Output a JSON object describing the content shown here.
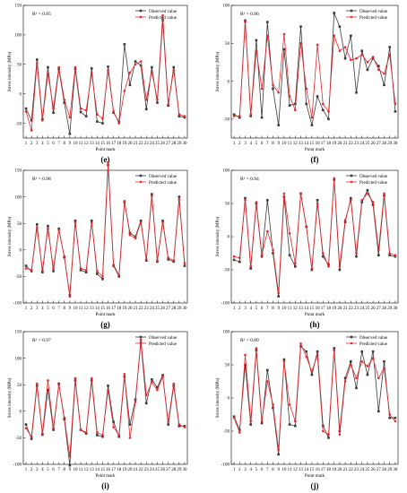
{
  "figure": {
    "colors": {
      "observed": "#3a3a3a",
      "predicted": "#e8262b",
      "axis": "#000000"
    }
  },
  "chart_data": [
    {
      "type": "line",
      "panel": "(e)",
      "r2": "R² = 0.85",
      "xlabel": "Point mark",
      "ylabel": "Stress intensity (MPa)",
      "ylim": [
        -75,
        150
      ],
      "yticks": [
        -50,
        0,
        50,
        100,
        150
      ],
      "x": [
        1,
        2,
        3,
        4,
        5,
        6,
        7,
        8,
        9,
        10,
        11,
        12,
        13,
        14,
        15,
        16,
        17,
        18,
        19,
        20,
        21,
        22,
        23,
        24,
        25,
        26,
        27,
        28,
        29,
        30
      ],
      "series": [
        {
          "name": "Observed value",
          "values": [
            -25,
            -45,
            58,
            -43,
            45,
            -32,
            42,
            -15,
            -68,
            42,
            -31,
            -38,
            43,
            -47,
            -50,
            46,
            -32,
            -48,
            84,
            15,
            55,
            48,
            -26,
            45,
            -15,
            125,
            -20,
            45,
            -38,
            -40
          ]
        },
        {
          "name": "Predicted value",
          "values": [
            -30,
            -62,
            52,
            -45,
            35,
            -25,
            45,
            -10,
            -40,
            45,
            -25,
            -28,
            35,
            -35,
            -42,
            40,
            -30,
            -50,
            5,
            36,
            50,
            55,
            -10,
            38,
            -10,
            133,
            -18,
            40,
            -35,
            -38
          ]
        }
      ]
    },
    {
      "type": "line",
      "panel": "(f)",
      "r2": "R² = 0.86",
      "xlabel": "Point mark",
      "ylabel": "Stress intensity (MPa)",
      "ylim": [
        -75,
        100
      ],
      "yticks": [
        -50,
        0,
        50,
        100
      ],
      "x": [
        1,
        2,
        3,
        4,
        5,
        6,
        7,
        8,
        9,
        10,
        11,
        12,
        13,
        14,
        15,
        16,
        17,
        18,
        19,
        20,
        21,
        22,
        23,
        24,
        25,
        26,
        27,
        28,
        29,
        30
      ],
      "series": [
        {
          "name": "Observed value",
          "values": [
            -44,
            -48,
            80,
            -46,
            54,
            -48,
            78,
            -10,
            -58,
            42,
            -32,
            -30,
            72,
            -30,
            -58,
            -20,
            -38,
            -50,
            90,
            72,
            30,
            60,
            -15,
            40,
            15,
            30,
            20,
            -5,
            45,
            -40
          ]
        },
        {
          "name": "Predicted value",
          "values": [
            -46,
            -46,
            78,
            -44,
            40,
            -10,
            60,
            -5,
            -15,
            62,
            -20,
            -38,
            50,
            -10,
            -48,
            48,
            -30,
            -40,
            60,
            40,
            45,
            28,
            30,
            35,
            25,
            32,
            15,
            10,
            35,
            -30
          ]
        }
      ]
    },
    {
      "type": "line",
      "panel": "(g)",
      "r2": "R² = 0.98",
      "xlabel": "Point mark",
      "ylabel": "Stress intensity (MPa)",
      "ylim": [
        -100,
        150
      ],
      "yticks": [
        -100,
        -50,
        0,
        50,
        100,
        150
      ],
      "x": [
        1,
        2,
        3,
        4,
        5,
        6,
        7,
        8,
        9,
        10,
        11,
        12,
        13,
        14,
        15,
        16,
        17,
        18,
        19,
        20,
        21,
        22,
        23,
        24,
        25,
        26,
        27,
        28,
        29,
        30
      ],
      "series": [
        {
          "name": "Observed value",
          "values": [
            -30,
            -40,
            48,
            -42,
            45,
            -40,
            40,
            -14,
            -85,
            55,
            -38,
            -42,
            55,
            -45,
            -55,
            160,
            -30,
            -50,
            90,
            32,
            25,
            55,
            -20,
            105,
            -22,
            55,
            -18,
            -22,
            100,
            -30
          ]
        },
        {
          "name": "Predicted value",
          "values": [
            -35,
            -38,
            42,
            -38,
            40,
            -35,
            38,
            -12,
            -88,
            52,
            -35,
            -38,
            52,
            -40,
            -50,
            165,
            -28,
            -48,
            92,
            28,
            22,
            52,
            -18,
            102,
            -20,
            52,
            -15,
            -20,
            95,
            -25
          ]
        }
      ]
    },
    {
      "type": "line",
      "panel": "(h)",
      "r2": "R² = 0.94",
      "xlabel": "Point mark",
      "ylabel": "Stress intensity (MPa)",
      "ylim": [
        -100,
        100
      ],
      "yticks": [
        -100,
        -50,
        0,
        50,
        100
      ],
      "x": [
        1,
        2,
        3,
        4,
        5,
        6,
        7,
        8,
        9,
        10,
        11,
        12,
        13,
        14,
        15,
        16,
        17,
        18,
        19,
        20,
        21,
        22,
        23,
        24,
        25,
        26,
        27,
        28,
        29,
        30
      ],
      "series": [
        {
          "name": "Observed value",
          "values": [
            -35,
            -38,
            58,
            -48,
            50,
            -30,
            55,
            -25,
            -90,
            60,
            -28,
            -45,
            65,
            15,
            -50,
            55,
            -30,
            -42,
            86,
            -50,
            22,
            58,
            -30,
            52,
            70,
            48,
            -28,
            62,
            -28,
            -30
          ]
        },
        {
          "name": "Predicted value",
          "values": [
            -30,
            -32,
            55,
            -45,
            52,
            -28,
            8,
            -20,
            -85,
            65,
            5,
            -40,
            65,
            15,
            -48,
            50,
            -25,
            -45,
            88,
            -45,
            25,
            55,
            -25,
            55,
            65,
            52,
            -20,
            65,
            -25,
            -28
          ]
        }
      ]
    },
    {
      "type": "line",
      "panel": "(i)",
      "r2": "R² = 0.97",
      "xlabel": "Point mark",
      "ylabel": "Stress intensity (MPa)",
      "ylim": [
        -100,
        150
      ],
      "yticks": [
        -100,
        -50,
        0,
        50,
        100,
        150
      ],
      "x": [
        1,
        2,
        3,
        4,
        5,
        6,
        7,
        8,
        9,
        10,
        11,
        12,
        13,
        14,
        15,
        16,
        17,
        18,
        19,
        20,
        21,
        22,
        23,
        24,
        25,
        26,
        27,
        28,
        29,
        30
      ],
      "series": [
        {
          "name": "Observed value",
          "values": [
            -25,
            -52,
            48,
            -44,
            40,
            -35,
            52,
            -15,
            -102,
            58,
            -35,
            -42,
            58,
            -45,
            -48,
            48,
            -20,
            -48,
            65,
            -25,
            22,
            130,
            15,
            60,
            45,
            68,
            -25,
            48,
            -28,
            -28
          ]
        },
        {
          "name": "Predicted value",
          "values": [
            -32,
            -48,
            52,
            -42,
            58,
            -32,
            50,
            -12,
            -85,
            62,
            -35,
            -40,
            62,
            -40,
            -45,
            40,
            -30,
            -45,
            70,
            -50,
            18,
            135,
            30,
            55,
            40,
            65,
            -20,
            52,
            -25,
            -30
          ]
        }
      ]
    },
    {
      "type": "line",
      "panel": "(j)",
      "r2": "R² = 0.89",
      "xlabel": "Point mark",
      "ylabel": "Stress intensity (MPa)",
      "ylim": [
        -100,
        100
      ],
      "yticks": [
        -100,
        -50,
        0,
        50,
        100
      ],
      "x": [
        1,
        2,
        3,
        4,
        5,
        6,
        7,
        8,
        9,
        10,
        11,
        12,
        13,
        14,
        15,
        16,
        17,
        18,
        19,
        20,
        21,
        22,
        23,
        24,
        25,
        26,
        27,
        28,
        29,
        30
      ],
      "series": [
        {
          "name": "Observed value",
          "values": [
            -28,
            -48,
            50,
            -40,
            72,
            -38,
            42,
            -15,
            -85,
            58,
            -40,
            -42,
            78,
            70,
            35,
            70,
            -42,
            -60,
            75,
            -50,
            30,
            55,
            15,
            70,
            35,
            70,
            -20,
            55,
            -30,
            -30
          ]
        },
        {
          "name": "Predicted value",
          "values": [
            -30,
            -52,
            65,
            -35,
            75,
            -35,
            25,
            -10,
            -78,
            55,
            -10,
            -35,
            82,
            62,
            40,
            65,
            -50,
            -55,
            72,
            -55,
            25,
            50,
            30,
            55,
            48,
            60,
            30,
            45,
            -25,
            -35
          ]
        }
      ]
    }
  ]
}
